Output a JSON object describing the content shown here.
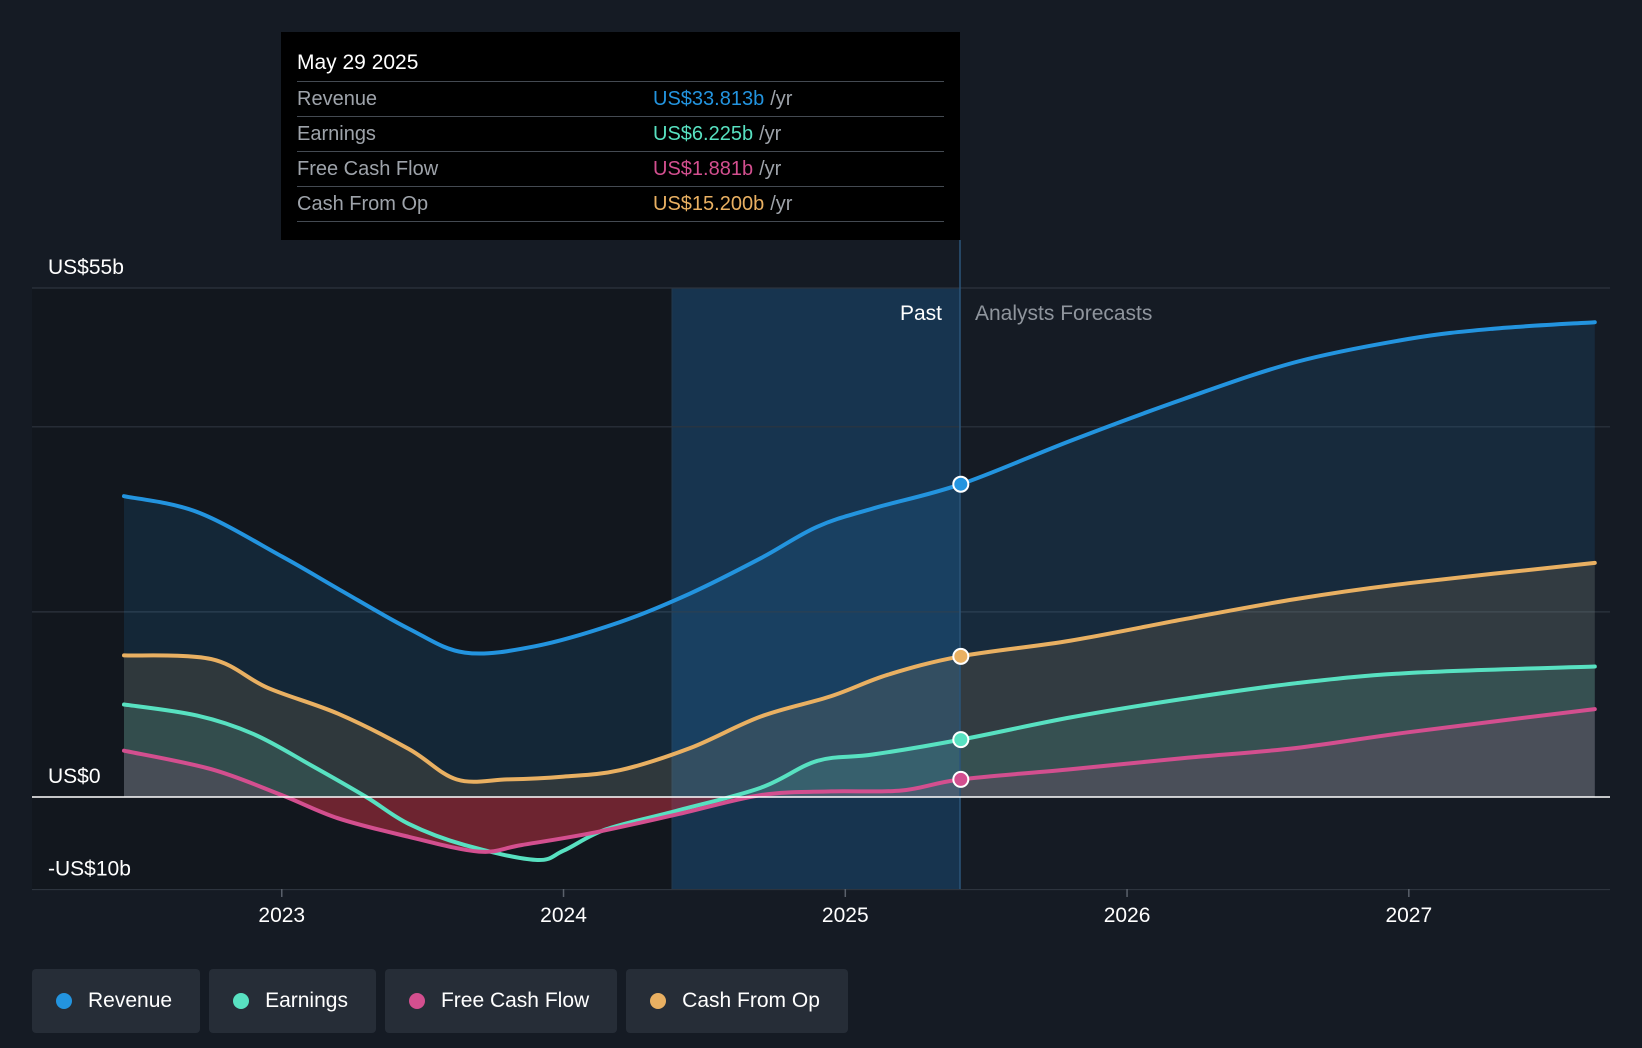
{
  "chart_data": {
    "type": "area",
    "x_ticks": [
      "2023",
      "2024",
      "2025",
      "2026",
      "2027"
    ],
    "y_labels": [
      "US$55b",
      "US$0",
      "-US$10b"
    ],
    "ylim": [
      -10,
      55
    ],
    "region_labels": {
      "past": "Past",
      "forecast": "Analysts Forecasts"
    },
    "series": [
      {
        "name": "Revenue",
        "color": "#2394df",
        "points": [
          [
            2022.44,
            32.5
          ],
          [
            2022.7,
            30.8
          ],
          [
            2023.0,
            26.0
          ],
          [
            2023.2,
            22.5
          ],
          [
            2023.45,
            18.2
          ],
          [
            2023.65,
            15.6
          ],
          [
            2023.9,
            16.3
          ],
          [
            2024.2,
            18.9
          ],
          [
            2024.45,
            22.0
          ],
          [
            2024.7,
            25.8
          ],
          [
            2024.9,
            29.2
          ],
          [
            2025.1,
            31.2
          ],
          [
            2025.41,
            33.8
          ],
          [
            2025.8,
            38.5
          ],
          [
            2026.2,
            43.0
          ],
          [
            2026.6,
            47.0
          ],
          [
            2027.0,
            49.5
          ],
          [
            2027.3,
            50.6
          ],
          [
            2027.66,
            51.3
          ]
        ]
      },
      {
        "name": "Earnings",
        "color": "#58e1c1",
        "points": [
          [
            2022.44,
            10.0
          ],
          [
            2022.7,
            8.8
          ],
          [
            2022.9,
            6.8
          ],
          [
            2023.1,
            3.5
          ],
          [
            2023.3,
            0.0
          ],
          [
            2023.45,
            -2.9
          ],
          [
            2023.65,
            -5.2
          ],
          [
            2023.9,
            -6.8
          ],
          [
            2024.0,
            -5.8
          ],
          [
            2024.15,
            -3.5
          ],
          [
            2024.4,
            -1.5
          ],
          [
            2024.7,
            1.0
          ],
          [
            2024.9,
            3.9
          ],
          [
            2025.1,
            4.6
          ],
          [
            2025.41,
            6.2
          ],
          [
            2025.8,
            8.6
          ],
          [
            2026.2,
            10.6
          ],
          [
            2026.6,
            12.3
          ],
          [
            2027.0,
            13.4
          ],
          [
            2027.66,
            14.1
          ]
        ]
      },
      {
        "name": "Free Cash Flow",
        "color": "#d34f8f",
        "points": [
          [
            2022.44,
            5.0
          ],
          [
            2022.75,
            3.0
          ],
          [
            2023.0,
            0.2
          ],
          [
            2023.2,
            -2.3
          ],
          [
            2023.45,
            -4.3
          ],
          [
            2023.7,
            -5.9
          ],
          [
            2023.85,
            -5.2
          ],
          [
            2024.1,
            -3.9
          ],
          [
            2024.4,
            -1.9
          ],
          [
            2024.7,
            0.2
          ],
          [
            2024.95,
            0.6
          ],
          [
            2025.2,
            0.7
          ],
          [
            2025.41,
            1.9
          ],
          [
            2025.8,
            3.0
          ],
          [
            2026.2,
            4.2
          ],
          [
            2026.6,
            5.3
          ],
          [
            2027.0,
            7.0
          ],
          [
            2027.66,
            9.5
          ]
        ]
      },
      {
        "name": "Cash From Op",
        "color": "#e9b062",
        "points": [
          [
            2022.44,
            15.3
          ],
          [
            2022.75,
            14.9
          ],
          [
            2022.95,
            11.8
          ],
          [
            2023.2,
            9.0
          ],
          [
            2023.45,
            5.2
          ],
          [
            2023.62,
            1.9
          ],
          [
            2023.8,
            1.9
          ],
          [
            2024.0,
            2.2
          ],
          [
            2024.2,
            2.9
          ],
          [
            2024.45,
            5.3
          ],
          [
            2024.7,
            8.7
          ],
          [
            2024.95,
            10.9
          ],
          [
            2025.15,
            13.2
          ],
          [
            2025.41,
            15.2
          ],
          [
            2025.8,
            16.9
          ],
          [
            2026.2,
            19.2
          ],
          [
            2026.6,
            21.4
          ],
          [
            2027.0,
            23.1
          ],
          [
            2027.66,
            25.3
          ]
        ]
      }
    ]
  },
  "tooltip": {
    "date": "May 29 2025",
    "rows": [
      {
        "label": "Revenue",
        "value": "US$33.813b",
        "unit": "/yr",
        "color": "#2394df"
      },
      {
        "label": "Earnings",
        "value": "US$6.225b",
        "unit": "/yr",
        "color": "#58e1c1"
      },
      {
        "label": "Free Cash Flow",
        "value": "US$1.881b",
        "unit": "/yr",
        "color": "#d34f8f"
      },
      {
        "label": "Cash From Op",
        "value": "US$15.200b",
        "unit": "/yr",
        "color": "#e9b062"
      }
    ]
  },
  "legend": [
    {
      "label": "Revenue",
      "color": "#2394df"
    },
    {
      "label": "Earnings",
      "color": "#58e1c1"
    },
    {
      "label": "Free Cash Flow",
      "color": "#d34f8f"
    },
    {
      "label": "Cash From Op",
      "color": "#e9b062"
    }
  ]
}
